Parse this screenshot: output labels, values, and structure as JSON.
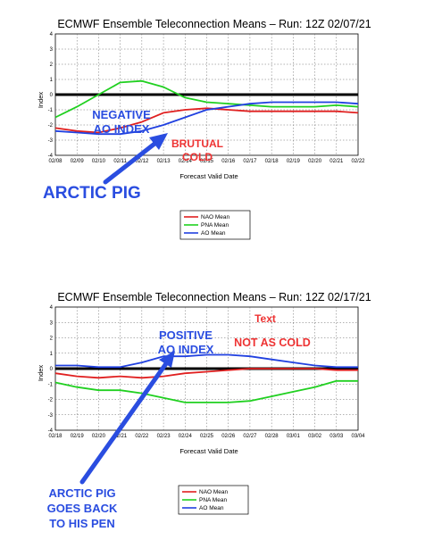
{
  "charts": [
    {
      "title": "ECMWF Ensemble Teleconnection Means – Run: 12Z 02/07/21",
      "ylabel": "Index",
      "xlabel": "Forecast Valid Date",
      "legend": [
        "NAO Mean",
        "PNA Mean",
        "AO Mean"
      ],
      "annotations": {
        "index_label_1": "NEGATIVE",
        "index_label_2": "AO INDEX",
        "cold_label_1": "BRUTUAL",
        "cold_label_2": "COLD",
        "pig_label_1": "ARCTIC PIG"
      }
    },
    {
      "title": "ECMWF Ensemble Teleconnection Means – Run: 12Z 02/17/21",
      "ylabel": "Index",
      "xlabel": "Forecast Valid Date",
      "legend": [
        "NAO Mean",
        "PNA Mean",
        "AO Mean"
      ],
      "annotations": {
        "text_label": "Text",
        "index_label_1": "POSITIVE",
        "index_label_2": "AO INDEX",
        "cold_label_1": "NOT AS COLD",
        "pig_label_1": "ARCTIC PIG",
        "pig_label_2": "GOES BACK",
        "pig_label_3": "TO HIS PEN"
      }
    }
  ],
  "colors": {
    "nao": "#e02020",
    "pna": "#20d020",
    "ao": "#2040e0",
    "zero_line": "#000000",
    "anno_blue": "#2a4de0",
    "anno_red": "#ee3333"
  },
  "chart_data": [
    {
      "type": "line",
      "title": "ECMWF Ensemble Teleconnection Means – Run: 12Z 02/07/21",
      "xlabel": "Forecast Valid Date",
      "ylabel": "Index",
      "ylim": [
        -4,
        4
      ],
      "yticks": [
        -4,
        -3,
        -2,
        -1,
        0,
        1,
        2,
        3,
        4
      ],
      "grid": true,
      "legend": "bottom-right",
      "categories": [
        "02/08",
        "02/09",
        "02/10",
        "02/11",
        "02/12",
        "02/13",
        "02/14",
        "02/15",
        "02/16",
        "02/17",
        "02/18",
        "02/19",
        "02/20",
        "02/21",
        "02/22"
      ],
      "series": [
        {
          "name": "NAO Mean",
          "values": [
            -2.2,
            -2.4,
            -2.5,
            -2.2,
            -1.8,
            -1.2,
            -1.0,
            -0.9,
            -1.0,
            -1.1,
            -1.1,
            -1.1,
            -1.1,
            -1.1,
            -1.2
          ]
        },
        {
          "name": "PNA Mean",
          "values": [
            -1.5,
            -0.8,
            0.0,
            0.8,
            0.9,
            0.5,
            -0.2,
            -0.5,
            -0.6,
            -0.7,
            -0.8,
            -0.8,
            -0.8,
            -0.7,
            -0.8
          ]
        },
        {
          "name": "AO Mean",
          "values": [
            -2.4,
            -2.5,
            -2.6,
            -2.6,
            -2.4,
            -2.0,
            -1.5,
            -1.0,
            -0.8,
            -0.6,
            -0.5,
            -0.5,
            -0.5,
            -0.5,
            -0.6
          ]
        }
      ]
    },
    {
      "type": "line",
      "title": "ECMWF Ensemble Teleconnection Means – Run: 12Z 02/17/21",
      "xlabel": "Forecast Valid Date",
      "ylabel": "Index",
      "ylim": [
        -4,
        4
      ],
      "yticks": [
        -4,
        -3,
        -2,
        -1,
        0,
        1,
        2,
        3,
        4
      ],
      "grid": true,
      "legend": "bottom-right",
      "categories": [
        "02/18",
        "02/19",
        "02/20",
        "02/21",
        "02/22",
        "02/23",
        "02/24",
        "02/25",
        "02/26",
        "02/27",
        "02/28",
        "03/01",
        "03/02",
        "03/03",
        "03/04"
      ],
      "series": [
        {
          "name": "NAO Mean",
          "values": [
            -0.3,
            -0.5,
            -0.6,
            -0.5,
            -0.6,
            -0.5,
            -0.3,
            -0.2,
            -0.1,
            0.0,
            0.0,
            0.0,
            0.0,
            -0.1,
            -0.1
          ]
        },
        {
          "name": "PNA Mean",
          "values": [
            -0.9,
            -1.2,
            -1.4,
            -1.4,
            -1.6,
            -1.9,
            -2.2,
            -2.2,
            -2.2,
            -2.1,
            -1.8,
            -1.5,
            -1.2,
            -0.8,
            -0.8
          ]
        },
        {
          "name": "AO Mean",
          "values": [
            0.2,
            0.2,
            0.1,
            0.1,
            0.4,
            0.8,
            0.8,
            0.9,
            0.9,
            0.8,
            0.6,
            0.4,
            0.2,
            0.1,
            0.1
          ]
        }
      ]
    }
  ]
}
